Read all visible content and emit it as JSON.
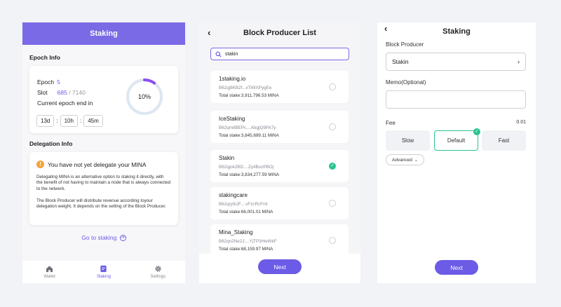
{
  "screen1": {
    "title": "Staking",
    "epoch_info_title": "Epoch Info",
    "epoch_label": "Epoch",
    "epoch_value": "5",
    "slot_label": "Slot",
    "slot_value": "685",
    "slot_max": " / 7140",
    "epoch_end_label": "Current epoch end in",
    "timer": {
      "days": "13d",
      "hours": "10h",
      "minutes": "45m",
      "sep": ":"
    },
    "progress_label": "10%",
    "progress_fraction": 0.1,
    "delegation_title": "Delegation Info",
    "warning": "You have not yet delegate your MINA",
    "para1": "Delegating MINA is an alternative option to staking it directly, with the benefit of not having to maintain a node that is always connected to the network.",
    "para2": "The Block Producer will distribute revenue according toyour delegation weight, It depends on the setting of the Block Producer.",
    "go_staking": "Go to staking",
    "tabs": {
      "wallet": "Wallet",
      "staking": "Staking",
      "settings": "Settings"
    }
  },
  "screen2": {
    "title": "Block Producer List",
    "search_value": "stakin",
    "producers": [
      {
        "name": "1staking.io",
        "address": "B62qj8KB2f...xTiWXPygEe",
        "stake": "Total stake:3,911,796.53 MINA",
        "selected": false
      },
      {
        "name": "IceStaking",
        "address": "B62qm8BEPc....KkgjQ9PA7y",
        "stake": "Total stake:3,845,699.11 MINA",
        "selected": false
      },
      {
        "name": "Stakin",
        "address": "B62qjok2BD....Zy4BuzPBOj",
        "stake": "Total stake:3,834,277.59 MINA",
        "selected": true
      },
      {
        "name": "stakingcare",
        "address": "B62qry8iJF....vFzcRcFnti",
        "stake": "Total stake:66,001.01 MINA",
        "selected": false
      },
      {
        "name": "Mina_Staking",
        "address": "B62qn2Ne2J....YjTP3HwWkF",
        "stake": "Total stake:68,159.97 MINA",
        "selected": false
      }
    ],
    "next": "Next"
  },
  "screen3": {
    "title": "Staking",
    "bp_label": "Block Producer",
    "bp_value": "Stakin",
    "memo_label": "Memo(Optional)",
    "fee_label": "Fee",
    "fee_value": "0.01",
    "fee_slow": "Slow",
    "fee_default": "Default",
    "fee_fast": "Fast",
    "advanced": "Advanced",
    "next": "Next"
  },
  "colors": {
    "primary": "#6b5be6",
    "success": "#2bc38e",
    "warning": "#f3a23a"
  }
}
